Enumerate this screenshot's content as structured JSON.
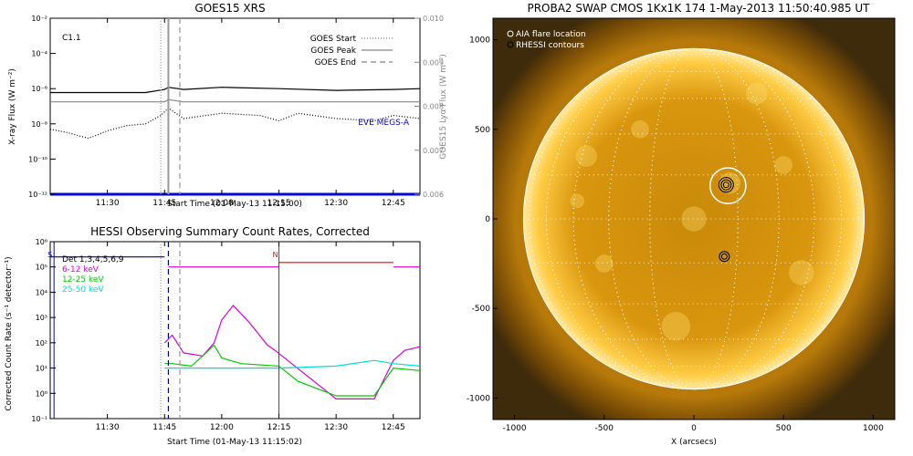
{
  "chart_data": [
    {
      "type": "line",
      "title": "GOES15 XRS",
      "annotation": "C1.1",
      "xlabel": "Start Time (01-May-13 11:15:00)",
      "ylabel": "X-ray Flux (W m⁻²)",
      "ylabel_right": "GOES15 Lyα Flux (W m⁻²)",
      "yscale": "log",
      "ylim": [
        1e-12,
        0.01
      ],
      "ylim_right": [
        0.006,
        0.01
      ],
      "xlim": [
        "11:15",
        "12:52"
      ],
      "x_ticks": [
        "11:30",
        "11:45",
        "12:00",
        "12:15",
        "12:30",
        "12:45"
      ],
      "y_ticks": [
        "10⁻¹²",
        "10⁻¹⁰",
        "10⁻⁸",
        "10⁻⁶",
        "10⁻⁴",
        "10⁻²"
      ],
      "y_ticks_right": [
        "0.006",
        "0.007",
        "0.008",
        "0.009",
        "0.010"
      ],
      "legend": [
        {
          "name": "GOES Start",
          "style": "dotted"
        },
        {
          "name": "GOES Peak",
          "style": "solid"
        },
        {
          "name": "GOES End",
          "style": "dashed"
        }
      ],
      "legend_position": "top-right",
      "vlines": [
        {
          "label": "GOES Start",
          "time": "11:44",
          "style": "dotted"
        },
        {
          "label": "GOES Peak",
          "time": "11:46",
          "style": "solid"
        },
        {
          "label": "GOES End",
          "time": "11:49",
          "style": "dashed"
        }
      ],
      "series": [
        {
          "color": "#000000",
          "x": [
            "11:15",
            "11:30",
            "11:40",
            "11:45",
            "11:46",
            "11:50",
            "12:00",
            "12:15",
            "12:30",
            "12:45",
            "12:52"
          ],
          "y": [
            6e-07,
            6e-07,
            6e-07,
            9e-07,
            1.2e-06,
            9e-07,
            1.2e-06,
            1e-06,
            8e-07,
            9e-07,
            1e-06
          ]
        },
        {
          "color": "#000000",
          "style": "dotted",
          "x": [
            "11:15",
            "11:20",
            "11:25",
            "11:30",
            "11:35",
            "11:40",
            "11:44",
            "11:46",
            "11:50",
            "12:00",
            "12:10",
            "12:15",
            "12:20",
            "12:30",
            "12:40",
            "12:45",
            "12:52"
          ],
          "y": [
            5e-09,
            3e-09,
            1.5e-09,
            4e-09,
            8e-09,
            1e-08,
            3e-08,
            8e-08,
            2e-08,
            4e-08,
            3e-08,
            1.5e-08,
            4e-08,
            2e-08,
            1.5e-08,
            3e-08,
            2e-08
          ]
        },
        {
          "color": "#888888",
          "axis": "right",
          "x": [
            "11:15",
            "11:45",
            "11:46",
            "11:50",
            "12:52"
          ],
          "y": [
            0.0081,
            0.0081,
            0.00815,
            0.0081,
            0.0081
          ]
        },
        {
          "name": "EVE MEGS-A",
          "color": "#0000dd",
          "x": [
            "11:15",
            "12:52"
          ],
          "y": [
            1e-12,
            1e-12
          ]
        }
      ]
    },
    {
      "type": "line",
      "title": "HESSI Observing Summary Count Rates, Corrected",
      "xlabel": "Start Time (01-May-13 11:15:02)",
      "ylabel": "Corrected Count Rate (s⁻¹ detector⁻¹)",
      "yscale": "log",
      "ylim": [
        0.1,
        1000000.0
      ],
      "xlim": [
        "11:15",
        "12:52"
      ],
      "x_ticks": [
        "11:30",
        "11:45",
        "12:00",
        "12:15",
        "12:30",
        "12:45"
      ],
      "y_ticks": [
        "10⁻¹",
        "10⁰",
        "10¹",
        "10²",
        "10³",
        "10⁴",
        "10⁵",
        "10⁶"
      ],
      "legend_position": "top-left",
      "markers": [
        {
          "label": "S",
          "time": "11:16",
          "color": "#0000cc"
        },
        {
          "label": "N",
          "time": "12:15",
          "color": "#ff0000"
        }
      ],
      "series": [
        {
          "name": "Det 1,3,4,5,6,9",
          "color": "#000099",
          "x": [
            "11:15",
            "11:45"
          ],
          "y": [
            250000,
            250000
          ]
        },
        {
          "name": "6-12 keV",
          "color": "#dd00dd",
          "x": [
            "11:45",
            "11:47",
            "11:50",
            "11:55",
            "11:58",
            "12:00",
            "12:03",
            "12:07",
            "12:12",
            "12:14",
            "12:30",
            "12:35",
            "12:40",
            "12:45",
            "12:48",
            "12:52"
          ],
          "y": [
            100,
            200,
            40,
            30,
            100,
            800,
            3000,
            700,
            80,
            50,
            0.6,
            0.6,
            0.6,
            20,
            50,
            70
          ]
        },
        {
          "name": "12-25 keV",
          "color": "#00cc00",
          "x": [
            "11:45",
            "11:47",
            "11:52",
            "11:55",
            "11:58",
            "12:00",
            "12:05",
            "12:15",
            "12:20",
            "12:30",
            "12:40",
            "12:45",
            "12:52"
          ],
          "y": [
            15,
            15,
            12,
            30,
            80,
            25,
            15,
            12,
            3,
            0.8,
            0.8,
            10,
            8
          ]
        },
        {
          "name": "25-50 keV",
          "color": "#00dddd",
          "x": [
            "11:45",
            "12:00",
            "12:15",
            "12:30",
            "12:40",
            "12:45",
            "12:52"
          ],
          "y": [
            10,
            10,
            10,
            12,
            20,
            15,
            12
          ]
        },
        {
          "color": "#ff0000",
          "x": [
            "12:15",
            "12:45"
          ],
          "y": [
            150000,
            150000
          ]
        },
        {
          "color": "#dd00dd",
          "x": [
            "11:46",
            "12:15"
          ],
          "y": [
            100000,
            100000
          ]
        },
        {
          "color": "#dd00dd",
          "x": [
            "12:45",
            "12:52"
          ],
          "y": [
            100000,
            100000
          ]
        }
      ]
    },
    {
      "type": "image",
      "title": "PROBA2 SWAP CMOS 1Kx1K 174   1-May-2013 11:50:40.985 UT",
      "xlabel": "X (arcsecs)",
      "xlim": [
        -1120,
        1120
      ],
      "ylim": [
        -1120,
        1120
      ],
      "x_ticks": [
        "-1000",
        "-500",
        "0",
        "500",
        "1000"
      ],
      "y_ticks": [
        "-1000",
        "-500",
        "0",
        "500",
        "1000"
      ],
      "legend": [
        {
          "name": "AIA flare location",
          "color": "#ffffff"
        },
        {
          "name": "RHESSI contours",
          "color": "#000000"
        }
      ],
      "legend_position": "top-left",
      "disk_radius_arcsec": 950,
      "flare_location": {
        "x": 190,
        "y": 185,
        "radius": 100
      },
      "rhessi_contours": [
        {
          "x": 180,
          "y": 190
        },
        {
          "x": 170,
          "y": -210
        }
      ]
    }
  ]
}
